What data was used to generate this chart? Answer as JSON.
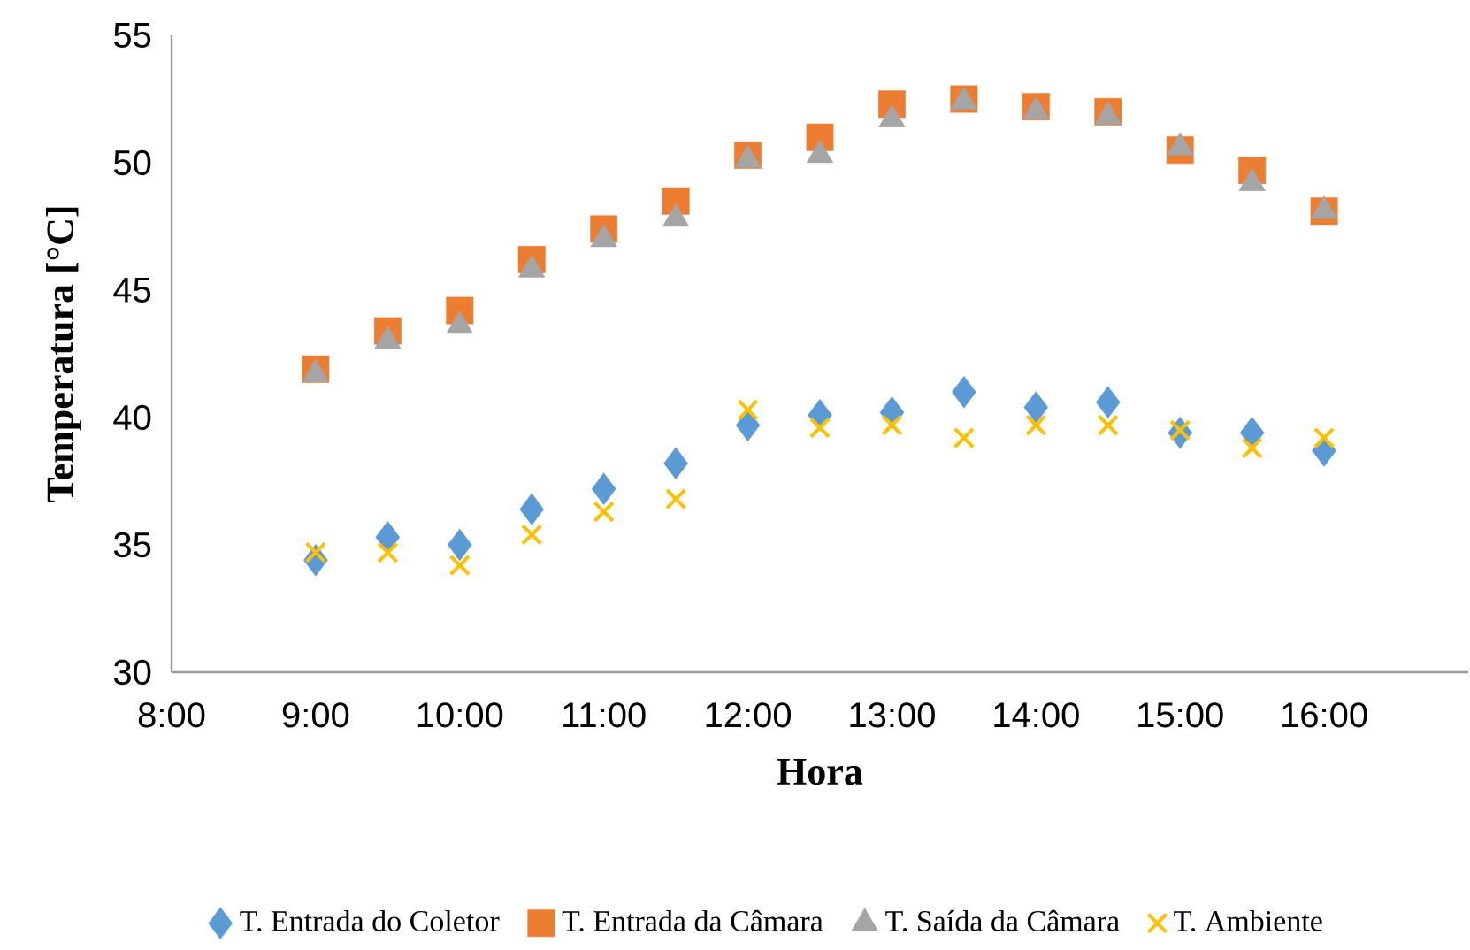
{
  "chart_data": {
    "type": "scatter",
    "xlabel": "Hora",
    "ylabel": "Temperatura [°C]",
    "x": [
      9,
      9.5,
      10,
      10.5,
      11,
      11.5,
      12,
      12.5,
      13,
      13.5,
      14,
      14.5,
      15,
      15.5,
      16
    ],
    "series": [
      {
        "name": "T. Entrada do Coletor",
        "color": "#5b9bd5",
        "marker": "diamond",
        "values": [
          34.4,
          35.3,
          35.0,
          36.4,
          37.2,
          38.2,
          39.7,
          40.1,
          40.2,
          41.0,
          40.4,
          40.6,
          39.4,
          39.4,
          38.7
        ]
      },
      {
        "name": "T. Entrada da Câmara",
        "color": "#ed7d31",
        "marker": "square",
        "values": [
          41.9,
          43.4,
          44.2,
          46.2,
          47.4,
          48.5,
          50.3,
          51.0,
          52.3,
          52.5,
          52.2,
          52.0,
          50.5,
          49.7,
          48.1
        ]
      },
      {
        "name": "T. Saída da Câmara",
        "color": "#a5a5a5",
        "marker": "triangle",
        "values": [
          41.7,
          43.0,
          43.6,
          45.8,
          47.0,
          47.8,
          50.1,
          50.3,
          51.7,
          52.4,
          52.0,
          51.8,
          50.6,
          49.2,
          48.1
        ]
      },
      {
        "name": "T. Ambiente",
        "color": "#ffc000",
        "marker": "cross",
        "values": [
          34.7,
          34.7,
          34.2,
          35.4,
          36.3,
          36.8,
          40.3,
          39.6,
          39.7,
          39.2,
          39.7,
          39.7,
          39.5,
          38.8,
          39.2
        ]
      }
    ],
    "xlim": [
      8,
      17
    ],
    "ylim": [
      30,
      55
    ],
    "xticks": [
      {
        "value": 8,
        "label": "8:00"
      },
      {
        "value": 9,
        "label": "9:00"
      },
      {
        "value": 10,
        "label": "10:00"
      },
      {
        "value": 11,
        "label": "11:00"
      },
      {
        "value": 12,
        "label": "12:00"
      },
      {
        "value": 13,
        "label": "13:00"
      },
      {
        "value": 14,
        "label": "14:00"
      },
      {
        "value": 15,
        "label": "15:00"
      },
      {
        "value": 16,
        "label": "16:00"
      }
    ],
    "yticks": [
      30,
      35,
      40,
      45,
      50,
      55
    ],
    "legend": "bottom",
    "grid": false
  }
}
